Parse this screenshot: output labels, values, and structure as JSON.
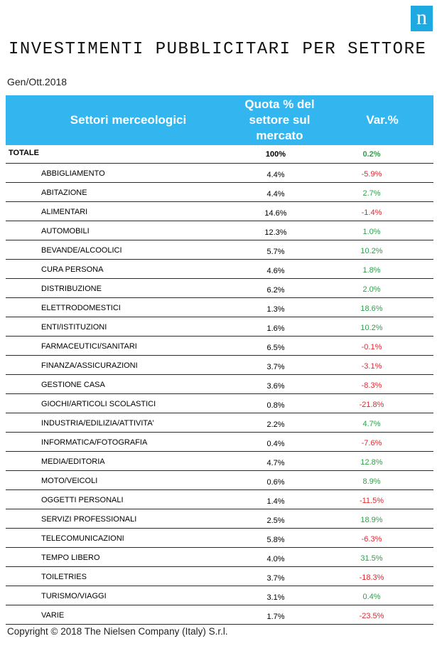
{
  "logo_letter": "n",
  "title": "INVESTIMENTI PUBBLICITARI PER SETTORE",
  "period": "Gen/Ott.2018",
  "headers": {
    "sector": "Settori merceologici",
    "quota": "Quota % del settore sul mercato",
    "var": "Var.%"
  },
  "colors": {
    "header_bg": "#33b5f0",
    "positive": "#2ea04a",
    "negative": "#e0282e",
    "logo_bg": "#1fa9e1"
  },
  "total": {
    "sector": "TOTALE",
    "quota": "100%",
    "var": "0.2%"
  },
  "rows": [
    {
      "sector": "ABBIGLIAMENTO",
      "quota": "4.4%",
      "var": "-5.9%"
    },
    {
      "sector": "ABITAZIONE",
      "quota": "4.4%",
      "var": "2.7%"
    },
    {
      "sector": "ALIMENTARI",
      "quota": "14.6%",
      "var": "-1.4%"
    },
    {
      "sector": "AUTOMOBILI",
      "quota": "12.3%",
      "var": "1.0%"
    },
    {
      "sector": "BEVANDE/ALCOOLICI",
      "quota": "5.7%",
      "var": "10.2%"
    },
    {
      "sector": "CURA PERSONA",
      "quota": "4.6%",
      "var": "1.8%"
    },
    {
      "sector": "DISTRIBUZIONE",
      "quota": "6.2%",
      "var": "2.0%"
    },
    {
      "sector": "ELETTRODOMESTICI",
      "quota": "1.3%",
      "var": "18.6%"
    },
    {
      "sector": "ENTI/ISTITUZIONI",
      "quota": "1.6%",
      "var": "10.2%"
    },
    {
      "sector": "FARMACEUTICI/SANITARI",
      "quota": "6.5%",
      "var": "-0.1%"
    },
    {
      "sector": "FINANZA/ASSICURAZIONI",
      "quota": "3.7%",
      "var": "-3.1%"
    },
    {
      "sector": "GESTIONE CASA",
      "quota": "3.6%",
      "var": "-8.3%"
    },
    {
      "sector": "GIOCHI/ARTICOLI SCOLASTICI",
      "quota": "0.8%",
      "var": "-21.8%"
    },
    {
      "sector": "INDUSTRIA/EDILIZIA/ATTIVITA'",
      "quota": "2.2%",
      "var": "4.7%"
    },
    {
      "sector": "INFORMATICA/FOTOGRAFIA",
      "quota": "0.4%",
      "var": "-7.6%"
    },
    {
      "sector": "MEDIA/EDITORIA",
      "quota": "4.7%",
      "var": "12.8%"
    },
    {
      "sector": "MOTO/VEICOLI",
      "quota": "0.6%",
      "var": "8.9%"
    },
    {
      "sector": "OGGETTI PERSONALI",
      "quota": "1.4%",
      "var": "-11.5%"
    },
    {
      "sector": "SERVIZI PROFESSIONALI",
      "quota": "2.5%",
      "var": "18.9%"
    },
    {
      "sector": "TELECOMUNICAZIONI",
      "quota": "5.8%",
      "var": "-6.3%"
    },
    {
      "sector": "TEMPO LIBERO",
      "quota": "4.0%",
      "var": "31.5%"
    },
    {
      "sector": "TOILETRIES",
      "quota": "3.7%",
      "var": "-18.3%"
    },
    {
      "sector": "TURISMO/VIAGGI",
      "quota": "3.1%",
      "var": "0.4%"
    },
    {
      "sector": "VARIE",
      "quota": "1.7%",
      "var": "-23.5%"
    }
  ],
  "footer": "Copyright © 2018 The Nielsen Company (Italy) S.r.l."
}
